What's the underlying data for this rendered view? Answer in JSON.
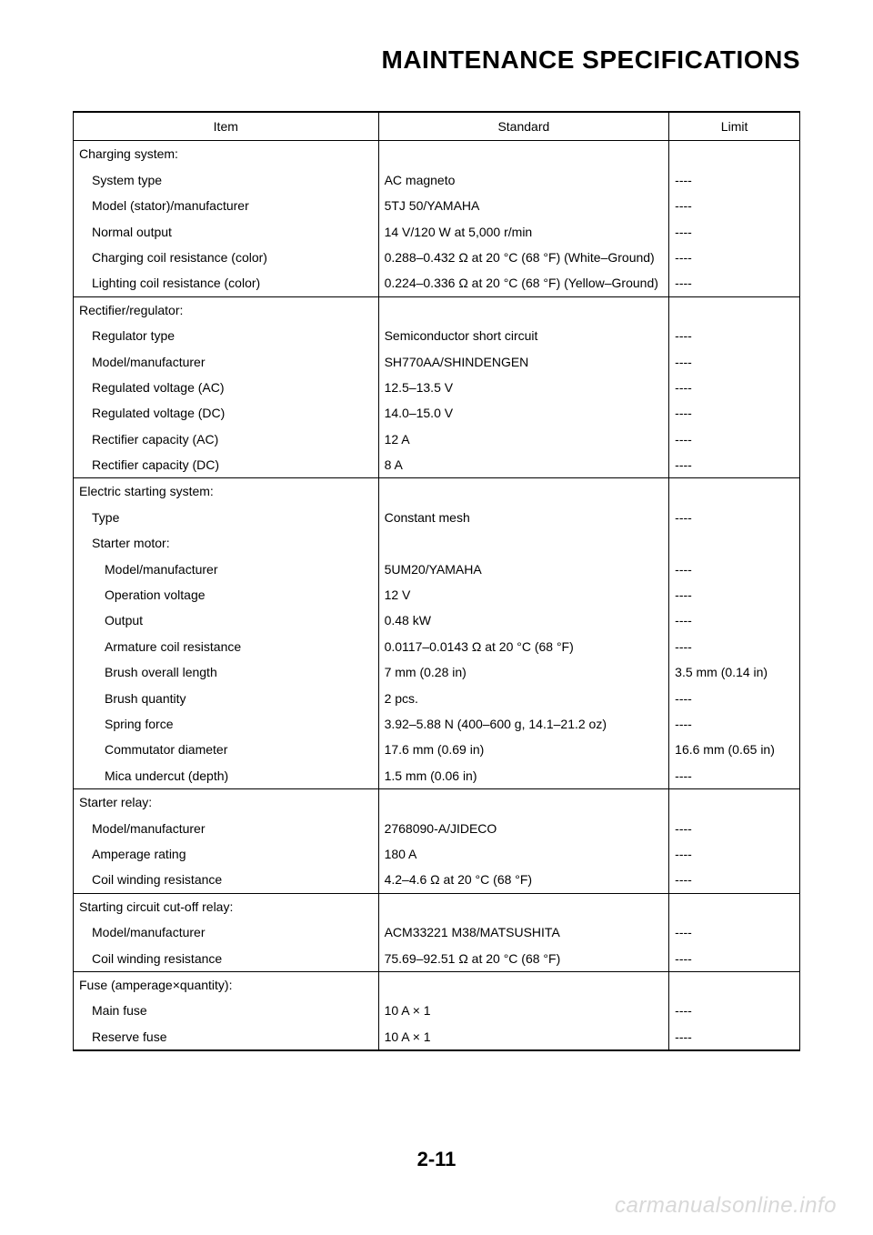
{
  "title": "MAINTENANCE SPECIFICATIONS",
  "page_number": "2-11",
  "watermark": "carmanualsonline.info",
  "columns": {
    "item": "Item",
    "standard": "Standard",
    "limit": "Limit"
  },
  "rows": [
    {
      "item": "Charging system:",
      "standard": "",
      "limit": "",
      "indent": 0
    },
    {
      "item": "System type",
      "standard": "AC magneto",
      "limit": "----",
      "indent": 1
    },
    {
      "item": "Model (stator)/manufacturer",
      "standard": "5TJ 50/YAMAHA",
      "limit": "----",
      "indent": 1
    },
    {
      "item": "Normal output",
      "standard": "14 V/120 W at 5,000 r/min",
      "limit": "----",
      "indent": 1
    },
    {
      "item": "Charging coil resistance (color)",
      "standard": "0.288–0.432 Ω at 20 °C (68 °F) (White–Ground)",
      "limit": "----",
      "indent": 1
    },
    {
      "item": "Lighting coil resistance (color)",
      "standard": "0.224–0.336 Ω at 20 °C (68 °F) (Yellow–Ground)",
      "limit": "----",
      "indent": 1,
      "section_end": true
    },
    {
      "item": "Rectifier/regulator:",
      "standard": "",
      "limit": "",
      "indent": 0
    },
    {
      "item": "Regulator type",
      "standard": "Semiconductor short circuit",
      "limit": "----",
      "indent": 1
    },
    {
      "item": "Model/manufacturer",
      "standard": "SH770AA/SHINDENGEN",
      "limit": "----",
      "indent": 1
    },
    {
      "item": "Regulated voltage (AC)",
      "standard": "12.5–13.5 V",
      "limit": "----",
      "indent": 1
    },
    {
      "item": "Regulated voltage (DC)",
      "standard": "14.0–15.0 V",
      "limit": "----",
      "indent": 1
    },
    {
      "item": "Rectifier capacity (AC)",
      "standard": "12 A",
      "limit": "----",
      "indent": 1
    },
    {
      "item": "Rectifier capacity (DC)",
      "standard": "8 A",
      "limit": "----",
      "indent": 1,
      "section_end": true
    },
    {
      "item": "Electric starting system:",
      "standard": "",
      "limit": "",
      "indent": 0
    },
    {
      "item": "Type",
      "standard": "Constant mesh",
      "limit": "----",
      "indent": 1
    },
    {
      "item": "Starter motor:",
      "standard": "",
      "limit": "",
      "indent": 1
    },
    {
      "item": "Model/manufacturer",
      "standard": "5UM20/YAMAHA",
      "limit": "----",
      "indent": 2
    },
    {
      "item": "Operation voltage",
      "standard": "12 V",
      "limit": "----",
      "indent": 2
    },
    {
      "item": "Output",
      "standard": "0.48 kW",
      "limit": "----",
      "indent": 2
    },
    {
      "item": "Armature coil resistance",
      "standard": "0.0117–0.0143 Ω at 20 °C (68 °F)",
      "limit": "----",
      "indent": 2
    },
    {
      "item": "Brush overall length",
      "standard": "7 mm (0.28 in)",
      "limit": "3.5 mm (0.14 in)",
      "indent": 2
    },
    {
      "item": "Brush quantity",
      "standard": "2 pcs.",
      "limit": "----",
      "indent": 2
    },
    {
      "item": "Spring force",
      "standard": "3.92–5.88 N (400–600 g, 14.1–21.2 oz)",
      "limit": "----",
      "indent": 2
    },
    {
      "item": "Commutator diameter",
      "standard": "17.6 mm (0.69 in)",
      "limit": "16.6 mm (0.65 in)",
      "indent": 2
    },
    {
      "item": "Mica undercut (depth)",
      "standard": "1.5 mm (0.06 in)",
      "limit": "----",
      "indent": 2,
      "section_end": true
    },
    {
      "item": "Starter relay:",
      "standard": "",
      "limit": "",
      "indent": 0
    },
    {
      "item": "Model/manufacturer",
      "standard": "2768090-A/JIDECO",
      "limit": "----",
      "indent": 1
    },
    {
      "item": "Amperage rating",
      "standard": "180 A",
      "limit": "----",
      "indent": 1
    },
    {
      "item": "Coil winding resistance",
      "standard": "4.2–4.6 Ω at 20 °C (68 °F)",
      "limit": "----",
      "indent": 1,
      "section_end": true
    },
    {
      "item": "Starting circuit cut-off relay:",
      "standard": "",
      "limit": "",
      "indent": 0
    },
    {
      "item": "Model/manufacturer",
      "standard": "ACM33221 M38/MATSUSHITA",
      "limit": "----",
      "indent": 1
    },
    {
      "item": "Coil winding resistance",
      "standard": "75.69–92.51 Ω at 20 °C (68 °F)",
      "limit": "----",
      "indent": 1,
      "section_end": true
    },
    {
      "item": "Fuse (amperage×quantity):",
      "standard": "",
      "limit": "",
      "indent": 0
    },
    {
      "item": "Main fuse",
      "standard": "10 A × 1",
      "limit": "----",
      "indent": 1
    },
    {
      "item": "Reserve fuse",
      "standard": "10 A × 1",
      "limit": "----",
      "indent": 1,
      "last_row": true
    }
  ]
}
